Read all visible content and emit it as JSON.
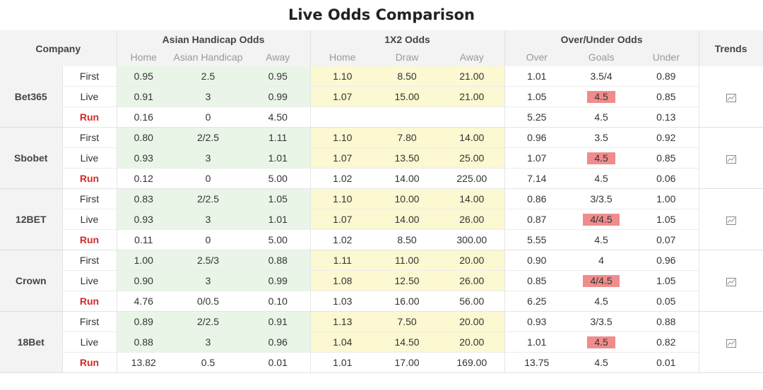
{
  "page_title": "Live Odds Comparison",
  "header": {
    "company": "Company",
    "asian_handicap": "Asian Handicap Odds",
    "x12": "1X2 Odds",
    "over_under": "Over/Under Odds",
    "trends": "Trends",
    "ah_sub": [
      "Home",
      "Asian Handicap",
      "Away"
    ],
    "x12_sub": [
      "Home",
      "Draw",
      "Away"
    ],
    "ou_sub": [
      "Over",
      "Goals",
      "Under"
    ]
  },
  "row_types": [
    "First",
    "Live",
    "Run"
  ],
  "trend_icon": "line-chart-icon",
  "colors": {
    "ah_bg": "#e9f6e7",
    "x12_bg": "#fbf8d2",
    "run_text": "#d42a2a",
    "goal_highlight": "#f08c8c"
  },
  "companies": [
    {
      "name": "Bet365",
      "rows": [
        {
          "ah": [
            "0.95",
            "2.5",
            "0.95"
          ],
          "x12": [
            "1.10",
            "8.50",
            "21.00"
          ],
          "ou": [
            "1.01",
            "3.5/4",
            "0.89"
          ]
        },
        {
          "ah": [
            "0.91",
            "3",
            "0.99"
          ],
          "x12": [
            "1.07",
            "15.00",
            "21.00"
          ],
          "ou": [
            "1.05",
            "4.5",
            "0.85"
          ]
        },
        {
          "ah": [
            "0.16",
            "0",
            "4.50"
          ],
          "x12": [
            "",
            "",
            ""
          ],
          "ou": [
            "5.25",
            "4.5",
            "0.13"
          ]
        }
      ]
    },
    {
      "name": "Sbobet",
      "rows": [
        {
          "ah": [
            "0.80",
            "2/2.5",
            "1.11"
          ],
          "x12": [
            "1.10",
            "7.80",
            "14.00"
          ],
          "ou": [
            "0.96",
            "3.5",
            "0.92"
          ]
        },
        {
          "ah": [
            "0.93",
            "3",
            "1.01"
          ],
          "x12": [
            "1.07",
            "13.50",
            "25.00"
          ],
          "ou": [
            "1.07",
            "4.5",
            "0.85"
          ]
        },
        {
          "ah": [
            "0.12",
            "0",
            "5.00"
          ],
          "x12": [
            "1.02",
            "14.00",
            "225.00"
          ],
          "ou": [
            "7.14",
            "4.5",
            "0.06"
          ]
        }
      ]
    },
    {
      "name": "12BET",
      "rows": [
        {
          "ah": [
            "0.83",
            "2/2.5",
            "1.05"
          ],
          "x12": [
            "1.10",
            "10.00",
            "14.00"
          ],
          "ou": [
            "0.86",
            "3/3.5",
            "1.00"
          ]
        },
        {
          "ah": [
            "0.93",
            "3",
            "1.01"
          ],
          "x12": [
            "1.07",
            "14.00",
            "26.00"
          ],
          "ou": [
            "0.87",
            "4/4.5",
            "1.05"
          ]
        },
        {
          "ah": [
            "0.11",
            "0",
            "5.00"
          ],
          "x12": [
            "1.02",
            "8.50",
            "300.00"
          ],
          "ou": [
            "5.55",
            "4.5",
            "0.07"
          ]
        }
      ]
    },
    {
      "name": "Crown",
      "rows": [
        {
          "ah": [
            "1.00",
            "2.5/3",
            "0.88"
          ],
          "x12": [
            "1.11",
            "11.00",
            "20.00"
          ],
          "ou": [
            "0.90",
            "4",
            "0.96"
          ]
        },
        {
          "ah": [
            "0.90",
            "3",
            "0.99"
          ],
          "x12": [
            "1.08",
            "12.50",
            "26.00"
          ],
          "ou": [
            "0.85",
            "4/4.5",
            "1.05"
          ]
        },
        {
          "ah": [
            "4.76",
            "0/0.5",
            "0.10"
          ],
          "x12": [
            "1.03",
            "16.00",
            "56.00"
          ],
          "ou": [
            "6.25",
            "4.5",
            "0.05"
          ]
        }
      ]
    },
    {
      "name": "18Bet",
      "rows": [
        {
          "ah": [
            "0.89",
            "2/2.5",
            "0.91"
          ],
          "x12": [
            "1.13",
            "7.50",
            "20.00"
          ],
          "ou": [
            "0.93",
            "3/3.5",
            "0.88"
          ]
        },
        {
          "ah": [
            "0.88",
            "3",
            "0.96"
          ],
          "x12": [
            "1.04",
            "14.50",
            "20.00"
          ],
          "ou": [
            "1.01",
            "4.5",
            "0.82"
          ]
        },
        {
          "ah": [
            "13.82",
            "0.5",
            "0.01"
          ],
          "x12": [
            "1.01",
            "17.00",
            "169.00"
          ],
          "ou": [
            "13.75",
            "4.5",
            "0.01"
          ]
        }
      ]
    }
  ]
}
